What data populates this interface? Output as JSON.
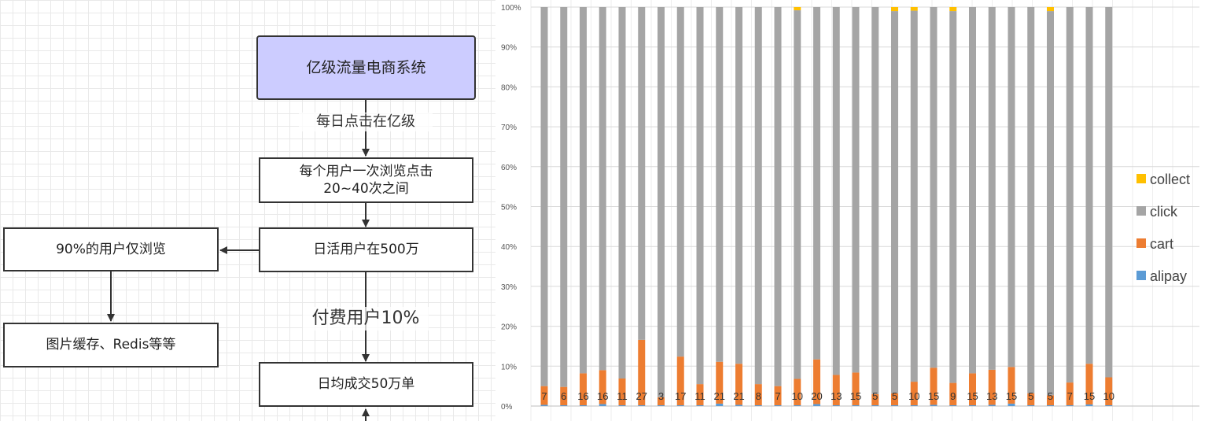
{
  "diagram": {
    "root": "亿级流量电商系统",
    "edge1": "每日点击在亿级",
    "node_browse": [
      "每个用户一次浏览点击",
      "20~40次之间"
    ],
    "node_dau": "日活用户在500万",
    "node_browse_only": "90%的用户仅浏览",
    "node_cache": "图片缓存、Redis等等",
    "edge2": "付费用户10%",
    "node_orders": "日均成交50万单"
  },
  "colors": {
    "alipay": "#5b9bd5",
    "cart": "#ed7d31",
    "click": "#a5a5a5",
    "collect": "#ffc000",
    "root_fill": "#ccccff"
  },
  "chart_data": {
    "type": "bar",
    "stacked": true,
    "normalized": true,
    "y_ticks": [
      "0%",
      "10%",
      "20%",
      "30%",
      "40%",
      "50%",
      "60%",
      "70%",
      "80%",
      "90%",
      "100%"
    ],
    "ylim": [
      0,
      100
    ],
    "grid": true,
    "legend_position": "right",
    "legend": [
      "collect",
      "click",
      "cart",
      "alipay"
    ],
    "bar_labels": [
      "7",
      "6",
      "16",
      "16",
      "11",
      "27",
      "3",
      "17",
      "11",
      "21",
      "21",
      "8",
      "7",
      "10",
      "20",
      "13",
      "15",
      "5",
      "5",
      "10",
      "15",
      "9",
      "15",
      "13",
      "15",
      "5",
      "5",
      "7",
      "15",
      "10"
    ],
    "series": [
      {
        "name": "alipay",
        "values": [
          0.3,
          0.2,
          0.2,
          0.5,
          0.2,
          0.2,
          0.2,
          0.2,
          0.2,
          0.6,
          0.3,
          0.2,
          0.2,
          0.2,
          0.5,
          0.2,
          0.2,
          0.2,
          0.2,
          0.2,
          0.3,
          0.2,
          0.2,
          0.3,
          0.6,
          0.2,
          0.2,
          0.2,
          0.4,
          0.2
        ]
      },
      {
        "name": "cart",
        "values": [
          4.7,
          4.6,
          8.0,
          8.5,
          6.7,
          16.4,
          2.0,
          12.2,
          5.3,
          10.5,
          10.3,
          5.3,
          4.8,
          6.6,
          11.2,
          7.6,
          8.2,
          2.8,
          3.0,
          5.9,
          9.3,
          5.6,
          8.0,
          8.8,
          9.2,
          3.0,
          2.5,
          5.7,
          10.2,
          7.0
        ]
      },
      {
        "name": "click",
        "values": [
          95.0,
          95.2,
          91.8,
          91.0,
          93.1,
          83.4,
          97.8,
          87.6,
          94.5,
          88.9,
          89.4,
          94.5,
          95.0,
          92.4,
          88.3,
          92.2,
          91.6,
          97.0,
          95.8,
          93.0,
          90.4,
          93.2,
          91.8,
          90.9,
          90.2,
          96.8,
          96.3,
          94.1,
          89.4,
          92.8
        ]
      },
      {
        "name": "collect",
        "values": [
          0,
          0,
          0,
          0,
          0,
          0,
          0,
          0,
          0,
          0,
          0,
          0,
          0,
          0.8,
          0,
          0,
          0,
          0,
          1.0,
          0.9,
          0,
          1.0,
          0,
          0,
          0,
          0,
          1.0,
          0,
          0,
          0
        ]
      }
    ]
  }
}
